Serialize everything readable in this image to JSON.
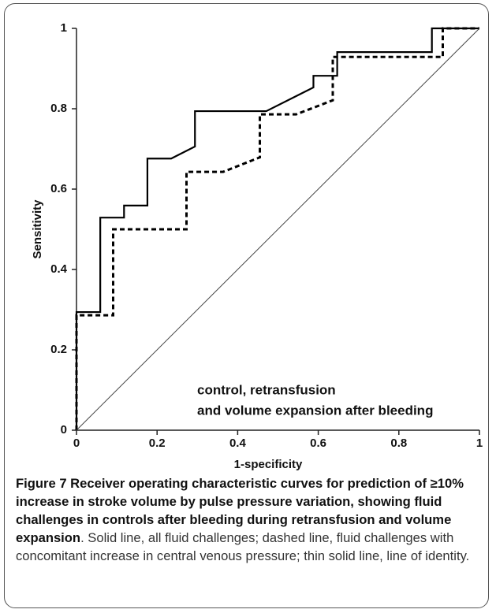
{
  "chart_data": {
    "type": "line",
    "xlabel": "1-specificity",
    "ylabel": "Sensitivity",
    "xlim": [
      0,
      1
    ],
    "ylim": [
      0,
      1
    ],
    "xticks": [
      0,
      0.2,
      0.4,
      0.6,
      0.8,
      1
    ],
    "yticks": [
      0,
      0.2,
      0.4,
      0.6,
      0.8,
      1
    ],
    "annotation": [
      "control, retransfusion",
      "and volume expansion after bleeding"
    ],
    "series": [
      {
        "color": "#000000",
        "style": "solid",
        "x": [
          0,
          0,
          0.059,
          0.059,
          0.118,
          0.118,
          0.176,
          0.176,
          0.235,
          0.294,
          0.294,
          0.471,
          0.588,
          0.588,
          0.647,
          0.647,
          0.882,
          0.882,
          1
        ],
        "values": [
          0,
          0.294,
          0.294,
          0.529,
          0.529,
          0.559,
          0.559,
          0.676,
          0.676,
          0.706,
          0.794,
          0.794,
          0.853,
          0.882,
          0.882,
          0.941,
          0.941,
          1,
          1
        ]
      },
      {
        "color": "#000000",
        "style": "dashed",
        "x": [
          0,
          0,
          0.091,
          0.091,
          0.273,
          0.273,
          0.364,
          0.455,
          0.455,
          0.545,
          0.636,
          0.636,
          0.909,
          0.909,
          1
        ],
        "values": [
          0,
          0.286,
          0.286,
          0.5,
          0.5,
          0.643,
          0.643,
          0.679,
          0.786,
          0.786,
          0.821,
          0.929,
          0.929,
          1,
          1
        ]
      },
      {
        "color": "#444444",
        "style": "thin",
        "x": [
          0,
          1
        ],
        "values": [
          0,
          1
        ]
      }
    ]
  },
  "caption": {
    "label": "Figure 7",
    "bold": "Receiver operating characteristic curves for prediction of ≥10% increase in stroke volume by pulse pressure variation, showing fluid challenges in controls after bleeding during retransfusion and volume expansion",
    "text": ". Solid line, all fluid challenges; dashed line, fluid challenges with concomitant increase in central venous pressure; thin solid line, line of identity."
  }
}
